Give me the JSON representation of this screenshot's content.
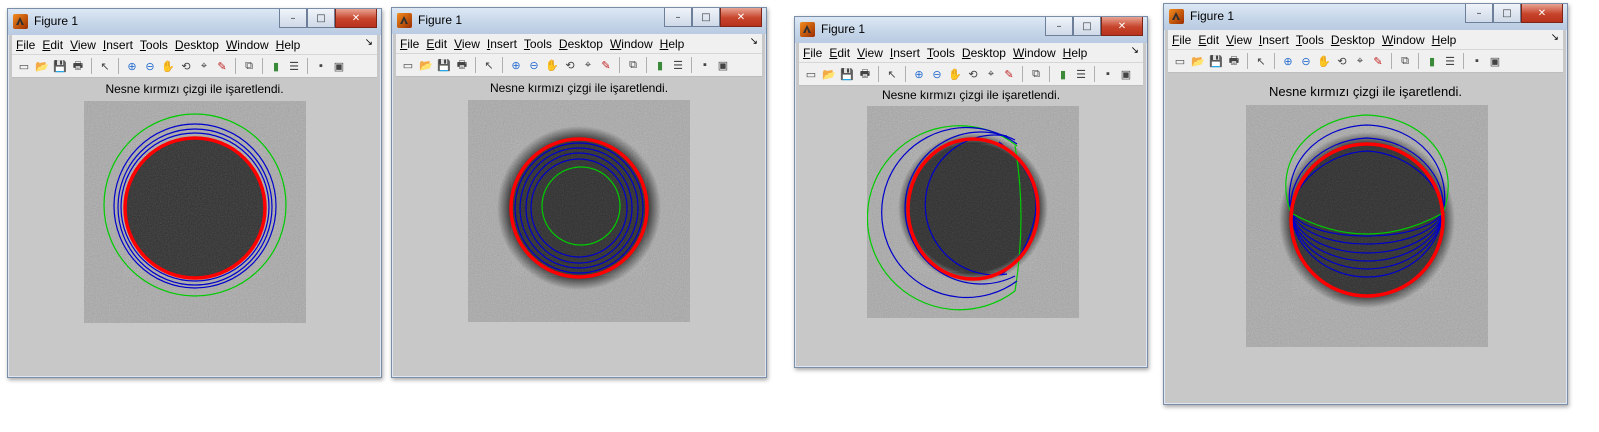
{
  "windows": [
    {
      "title": "Figure 1",
      "caption": "Nesne kırmızı çizgi ile işaretlendi."
    },
    {
      "title": "Figure 1",
      "caption": "Nesne kırmızı çizgi ile işaretlendi."
    },
    {
      "title": "Figure 1",
      "caption": "Nesne kırmızı çizgi ile işaretlendi."
    },
    {
      "title": "Figure 1",
      "caption": "Nesne kırmızı çizgi ile işaretlendi."
    }
  ],
  "menu": [
    "File",
    "Edit",
    "View",
    "Insert",
    "Tools",
    "Desktop",
    "Window",
    "Help"
  ],
  "toolbar_icons": [
    "new-figure-icon",
    "open-file-icon",
    "save-icon",
    "print-icon",
    "select-arrow-icon",
    "zoom-in-icon",
    "zoom-out-icon",
    "pan-hand-icon",
    "rotate-3d-icon",
    "data-cursor-icon",
    "brush-icon",
    "link-plot-icon",
    "colorbar-icon",
    "legend-icon",
    "hide-plot-tools-icon",
    "show-plot-tools-icon"
  ],
  "colors": {
    "object_contour": "#ff0000",
    "initial_contour": "#00cc00",
    "evolving_contour": "#0000cc"
  }
}
